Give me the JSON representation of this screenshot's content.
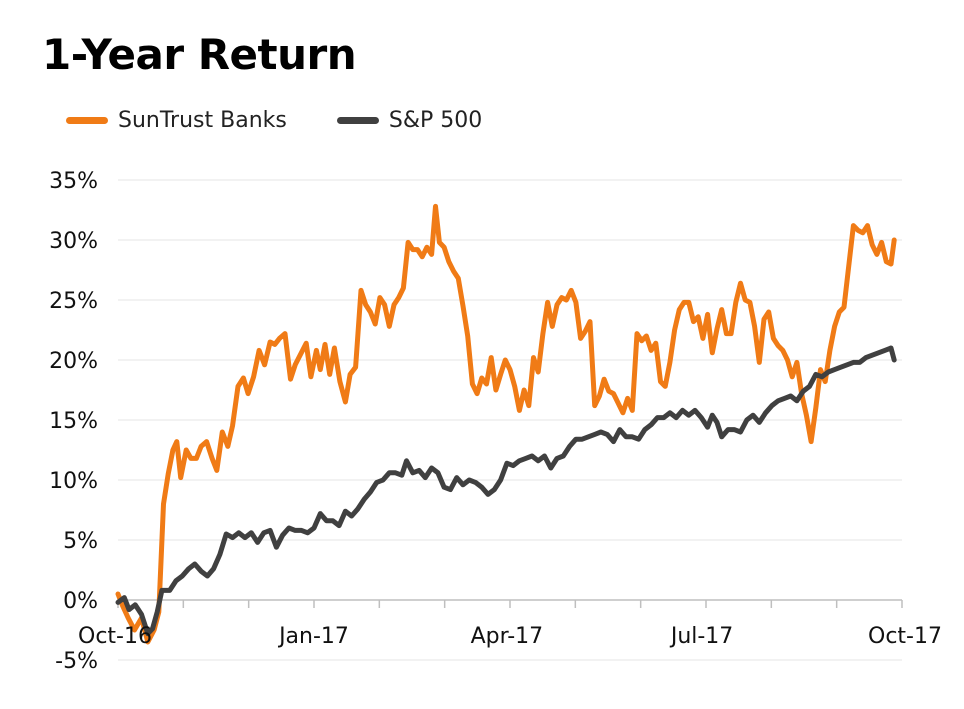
{
  "title": "1-Year Return",
  "colors": {
    "suntrust": "#F07B16",
    "sp500": "#404040",
    "grid": "#E6E6E6",
    "axis": "#BFBFBF"
  },
  "chart_data": {
    "type": "line",
    "title": "1-Year Return",
    "xlabel": "",
    "ylabel": "",
    "ylim": [
      -5,
      35
    ],
    "xlim": [
      0,
      1
    ],
    "yticks": [
      -5,
      0,
      5,
      10,
      15,
      20,
      25,
      30,
      35
    ],
    "ytick_labels": [
      "-5%",
      "0%",
      "5%",
      "10%",
      "15%",
      "20%",
      "25%",
      "30%",
      "35%"
    ],
    "xticks": [
      {
        "label": "Oct-16",
        "x": 0.0
      },
      {
        "label": "Jan-17",
        "x": 0.25
      },
      {
        "label": "Apr-17",
        "x": 0.496
      },
      {
        "label": "Jul-17",
        "x": 0.745
      },
      {
        "label": "Oct-17",
        "x": 1.0
      }
    ],
    "grid": true,
    "legend_position": "top-left",
    "series": [
      {
        "name": "SunTrust Banks",
        "color": "#F07B16",
        "points": [
          [
            0.0,
            0.5
          ],
          [
            0.006,
            -0.5
          ],
          [
            0.013,
            -1.5
          ],
          [
            0.021,
            -2.5
          ],
          [
            0.03,
            -1.5
          ],
          [
            0.038,
            -3.5
          ],
          [
            0.046,
            -2.5
          ],
          [
            0.052,
            -1.0
          ],
          [
            0.058,
            8
          ],
          [
            0.064,
            10.5
          ],
          [
            0.07,
            12.5
          ],
          [
            0.075,
            13.2
          ],
          [
            0.08,
            10.2
          ],
          [
            0.087,
            12.5
          ],
          [
            0.093,
            11.8
          ],
          [
            0.1,
            11.8
          ],
          [
            0.106,
            12.8
          ],
          [
            0.113,
            13.2
          ],
          [
            0.12,
            11.8
          ],
          [
            0.126,
            10.8
          ],
          [
            0.133,
            14
          ],
          [
            0.14,
            12.8
          ],
          [
            0.146,
            14.5
          ],
          [
            0.153,
            17.8
          ],
          [
            0.16,
            18.5
          ],
          [
            0.166,
            17.2
          ],
          [
            0.173,
            18.6
          ],
          [
            0.18,
            20.8
          ],
          [
            0.187,
            19.6
          ],
          [
            0.194,
            21.5
          ],
          [
            0.2,
            21.3
          ],
          [
            0.206,
            21.8
          ],
          [
            0.213,
            22.2
          ],
          [
            0.22,
            18.4
          ],
          [
            0.226,
            19.6
          ],
          [
            0.233,
            20.5
          ],
          [
            0.24,
            21.4
          ],
          [
            0.246,
            18.6
          ],
          [
            0.253,
            20.8
          ],
          [
            0.258,
            19.2
          ],
          [
            0.264,
            21.3
          ],
          [
            0.27,
            18.8
          ],
          [
            0.276,
            21.0
          ],
          [
            0.283,
            18.2
          ],
          [
            0.29,
            16.5
          ],
          [
            0.296,
            18.8
          ],
          [
            0.303,
            19.4
          ],
          [
            0.31,
            25.8
          ],
          [
            0.316,
            24.6
          ],
          [
            0.322,
            24.0
          ],
          [
            0.328,
            23.0
          ],
          [
            0.334,
            25.2
          ],
          [
            0.34,
            24.6
          ],
          [
            0.346,
            22.8
          ],
          [
            0.352,
            24.6
          ],
          [
            0.358,
            25.2
          ],
          [
            0.364,
            26.0
          ],
          [
            0.37,
            29.8
          ],
          [
            0.376,
            29.2
          ],
          [
            0.382,
            29.2
          ],
          [
            0.388,
            28.6
          ],
          [
            0.394,
            29.4
          ],
          [
            0.4,
            28.8
          ],
          [
            0.405,
            32.8
          ],
          [
            0.41,
            29.8
          ],
          [
            0.416,
            29.4
          ],
          [
            0.422,
            28.2
          ],
          [
            0.428,
            27.4
          ],
          [
            0.434,
            26.8
          ],
          [
            0.44,
            24.5
          ],
          [
            0.446,
            22.0
          ],
          [
            0.452,
            18.0
          ],
          [
            0.458,
            17.2
          ],
          [
            0.464,
            18.5
          ],
          [
            0.47,
            18.0
          ],
          [
            0.476,
            20.2
          ],
          [
            0.482,
            17.5
          ],
          [
            0.488,
            18.8
          ],
          [
            0.494,
            20.0
          ],
          [
            0.5,
            19.2
          ],
          [
            0.506,
            17.8
          ],
          [
            0.512,
            15.8
          ],
          [
            0.518,
            17.5
          ],
          [
            0.524,
            16.2
          ],
          [
            0.53,
            20.2
          ],
          [
            0.536,
            19.0
          ],
          [
            0.542,
            22.2
          ],
          [
            0.548,
            24.8
          ],
          [
            0.554,
            22.8
          ],
          [
            0.56,
            24.6
          ],
          [
            0.566,
            25.2
          ],
          [
            0.572,
            25.0
          ],
          [
            0.578,
            25.8
          ],
          [
            0.584,
            24.8
          ],
          [
            0.59,
            21.8
          ],
          [
            0.596,
            22.4
          ],
          [
            0.602,
            23.2
          ],
          [
            0.608,
            16.2
          ],
          [
            0.614,
            17.0
          ],
          [
            0.62,
            18.4
          ],
          [
            0.626,
            17.4
          ],
          [
            0.632,
            17.2
          ],
          [
            0.638,
            16.4
          ],
          [
            0.644,
            15.6
          ],
          [
            0.65,
            16.8
          ],
          [
            0.656,
            15.8
          ],
          [
            0.662,
            22.2
          ],
          [
            0.668,
            21.6
          ],
          [
            0.674,
            22.0
          ],
          [
            0.68,
            20.8
          ],
          [
            0.686,
            21.4
          ],
          [
            0.692,
            18.2
          ],
          [
            0.698,
            17.8
          ],
          [
            0.704,
            19.8
          ],
          [
            0.71,
            22.5
          ],
          [
            0.716,
            24.2
          ],
          [
            0.722,
            24.8
          ],
          [
            0.728,
            24.8
          ],
          [
            0.734,
            23.2
          ],
          [
            0.74,
            23.6
          ],
          [
            0.746,
            21.8
          ],
          [
            0.752,
            23.8
          ],
          [
            0.758,
            20.6
          ],
          [
            0.764,
            22.6
          ],
          [
            0.77,
            24.2
          ],
          [
            0.776,
            22.2
          ],
          [
            0.782,
            22.2
          ],
          [
            0.788,
            24.8
          ],
          [
            0.794,
            26.4
          ],
          [
            0.8,
            25.0
          ],
          [
            0.806,
            24.8
          ],
          [
            0.812,
            22.8
          ],
          [
            0.818,
            19.8
          ],
          [
            0.824,
            23.4
          ],
          [
            0.83,
            24.0
          ],
          [
            0.836,
            21.8
          ],
          [
            0.842,
            21.2
          ],
          [
            0.848,
            20.8
          ],
          [
            0.854,
            20.0
          ],
          [
            0.86,
            18.6
          ],
          [
            0.866,
            19.8
          ],
          [
            0.872,
            17.2
          ],
          [
            0.878,
            15.4
          ],
          [
            0.884,
            13.2
          ],
          [
            0.89,
            16.0
          ],
          [
            0.896,
            19.2
          ],
          [
            0.902,
            18.2
          ],
          [
            0.908,
            20.8
          ],
          [
            0.914,
            22.8
          ],
          [
            0.92,
            24.0
          ],
          [
            0.926,
            24.4
          ],
          [
            0.932,
            27.8
          ],
          [
            0.938,
            31.2
          ],
          [
            0.944,
            30.8
          ],
          [
            0.95,
            30.6
          ],
          [
            0.956,
            31.2
          ],
          [
            0.962,
            29.6
          ],
          [
            0.968,
            28.8
          ],
          [
            0.974,
            29.8
          ],
          [
            0.98,
            28.2
          ],
          [
            0.986,
            28.0
          ],
          [
            0.99,
            30.0
          ]
        ]
      },
      {
        "name": "S&P 500",
        "color": "#404040",
        "points": [
          [
            0.0,
            -0.2
          ],
          [
            0.008,
            0.2
          ],
          [
            0.014,
            -0.8
          ],
          [
            0.022,
            -0.4
          ],
          [
            0.03,
            -1.2
          ],
          [
            0.038,
            -2.8
          ],
          [
            0.044,
            -2.4
          ],
          [
            0.05,
            -1.0
          ],
          [
            0.056,
            0.8
          ],
          [
            0.066,
            0.8
          ],
          [
            0.074,
            1.6
          ],
          [
            0.082,
            2.0
          ],
          [
            0.09,
            2.6
          ],
          [
            0.098,
            3.0
          ],
          [
            0.106,
            2.4
          ],
          [
            0.114,
            2.0
          ],
          [
            0.122,
            2.6
          ],
          [
            0.13,
            3.8
          ],
          [
            0.138,
            5.5
          ],
          [
            0.146,
            5.2
          ],
          [
            0.154,
            5.6
          ],
          [
            0.162,
            5.2
          ],
          [
            0.17,
            5.6
          ],
          [
            0.178,
            4.8
          ],
          [
            0.186,
            5.6
          ],
          [
            0.194,
            5.8
          ],
          [
            0.202,
            4.4
          ],
          [
            0.21,
            5.4
          ],
          [
            0.218,
            6.0
          ],
          [
            0.226,
            5.8
          ],
          [
            0.234,
            5.8
          ],
          [
            0.242,
            5.6
          ],
          [
            0.25,
            6.0
          ],
          [
            0.258,
            7.2
          ],
          [
            0.266,
            6.6
          ],
          [
            0.274,
            6.6
          ],
          [
            0.282,
            6.2
          ],
          [
            0.29,
            7.4
          ],
          [
            0.298,
            7.0
          ],
          [
            0.306,
            7.6
          ],
          [
            0.314,
            8.4
          ],
          [
            0.322,
            9.0
          ],
          [
            0.33,
            9.8
          ],
          [
            0.338,
            10.0
          ],
          [
            0.346,
            10.6
          ],
          [
            0.354,
            10.6
          ],
          [
            0.362,
            10.4
          ],
          [
            0.368,
            11.6
          ],
          [
            0.376,
            10.6
          ],
          [
            0.384,
            10.8
          ],
          [
            0.392,
            10.2
          ],
          [
            0.4,
            11.0
          ],
          [
            0.408,
            10.6
          ],
          [
            0.416,
            9.4
          ],
          [
            0.424,
            9.2
          ],
          [
            0.432,
            10.2
          ],
          [
            0.44,
            9.6
          ],
          [
            0.448,
            10.0
          ],
          [
            0.456,
            9.8
          ],
          [
            0.464,
            9.4
          ],
          [
            0.472,
            8.8
          ],
          [
            0.48,
            9.2
          ],
          [
            0.488,
            10.0
          ],
          [
            0.496,
            11.4
          ],
          [
            0.504,
            11.2
          ],
          [
            0.512,
            11.6
          ],
          [
            0.52,
            11.8
          ],
          [
            0.528,
            12.0
          ],
          [
            0.536,
            11.6
          ],
          [
            0.544,
            12.0
          ],
          [
            0.552,
            11.0
          ],
          [
            0.56,
            11.8
          ],
          [
            0.568,
            12.0
          ],
          [
            0.576,
            12.8
          ],
          [
            0.584,
            13.4
          ],
          [
            0.592,
            13.4
          ],
          [
            0.6,
            13.6
          ],
          [
            0.608,
            13.8
          ],
          [
            0.616,
            14.0
          ],
          [
            0.624,
            13.8
          ],
          [
            0.632,
            13.2
          ],
          [
            0.64,
            14.2
          ],
          [
            0.648,
            13.6
          ],
          [
            0.656,
            13.6
          ],
          [
            0.664,
            13.4
          ],
          [
            0.672,
            14.2
          ],
          [
            0.68,
            14.6
          ],
          [
            0.688,
            15.2
          ],
          [
            0.696,
            15.2
          ],
          [
            0.704,
            15.6
          ],
          [
            0.712,
            15.2
          ],
          [
            0.72,
            15.8
          ],
          [
            0.728,
            15.4
          ],
          [
            0.736,
            15.8
          ],
          [
            0.744,
            15.2
          ],
          [
            0.752,
            14.4
          ],
          [
            0.758,
            15.4
          ],
          [
            0.764,
            14.8
          ],
          [
            0.77,
            13.6
          ],
          [
            0.778,
            14.2
          ],
          [
            0.786,
            14.2
          ],
          [
            0.794,
            14.0
          ],
          [
            0.802,
            15.0
          ],
          [
            0.81,
            15.4
          ],
          [
            0.818,
            14.8
          ],
          [
            0.826,
            15.6
          ],
          [
            0.834,
            16.2
          ],
          [
            0.842,
            16.6
          ],
          [
            0.85,
            16.8
          ],
          [
            0.858,
            17.0
          ],
          [
            0.866,
            16.6
          ],
          [
            0.874,
            17.4
          ],
          [
            0.882,
            17.8
          ],
          [
            0.89,
            18.8
          ],
          [
            0.898,
            18.6
          ],
          [
            0.906,
            19.0
          ],
          [
            0.914,
            19.2
          ],
          [
            0.922,
            19.4
          ],
          [
            0.93,
            19.6
          ],
          [
            0.938,
            19.8
          ],
          [
            0.946,
            19.8
          ],
          [
            0.954,
            20.2
          ],
          [
            0.962,
            20.4
          ],
          [
            0.97,
            20.6
          ],
          [
            0.978,
            20.8
          ],
          [
            0.986,
            21.0
          ],
          [
            0.99,
            20.0
          ]
        ]
      }
    ]
  }
}
